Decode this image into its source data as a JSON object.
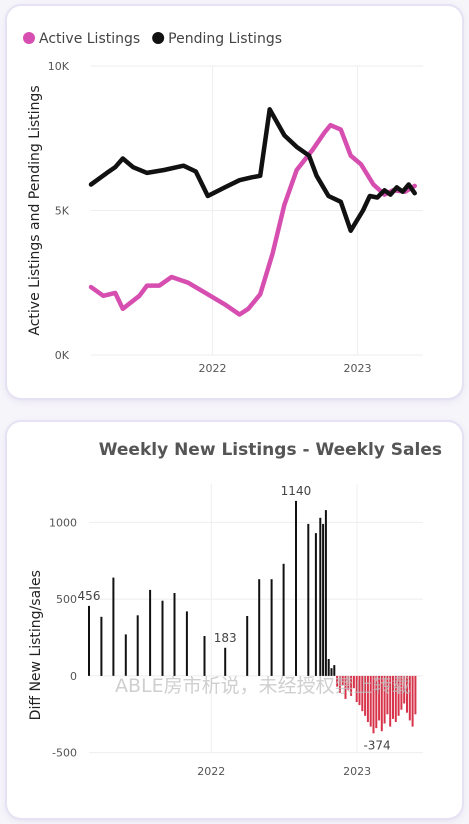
{
  "chart_data": [
    {
      "type": "line",
      "title": "",
      "xlabel": "",
      "ylabel": "Active Listings and Pending Listings",
      "ylim": [
        0,
        10000
      ],
      "yticks": [
        {
          "value": 0,
          "label": "0K"
        },
        {
          "value": 5000,
          "label": "5K"
        },
        {
          "value": 10000,
          "label": "10K"
        }
      ],
      "xlim": [
        "2021-03-01",
        "2023-06-15"
      ],
      "xticks": [
        {
          "value": "2022-01-01",
          "label": "2022"
        },
        {
          "value": "2023-01-01",
          "label": "2023"
        }
      ],
      "grid": true,
      "legend_position": "top-left",
      "series": [
        {
          "name": "Active Listings",
          "color": "#d64fb0",
          "points": [
            [
              "2021-03-01",
              2350
            ],
            [
              "2021-04-01",
              2050
            ],
            [
              "2021-05-01",
              2150
            ],
            [
              "2021-05-20",
              1600
            ],
            [
              "2021-07-01",
              2050
            ],
            [
              "2021-07-20",
              2400
            ],
            [
              "2021-08-20",
              2400
            ],
            [
              "2021-09-20",
              2700
            ],
            [
              "2021-11-01",
              2500
            ],
            [
              "2021-12-20",
              2100
            ],
            [
              "2022-02-01",
              1750
            ],
            [
              "2022-03-10",
              1400
            ],
            [
              "2022-04-01",
              1600
            ],
            [
              "2022-05-01",
              2100
            ],
            [
              "2022-06-01",
              3500
            ],
            [
              "2022-07-01",
              5200
            ],
            [
              "2022-08-01",
              6400
            ],
            [
              "2022-09-10",
              7100
            ],
            [
              "2022-10-10",
              7700
            ],
            [
              "2022-10-25",
              7950
            ],
            [
              "2022-11-20",
              7800
            ],
            [
              "2022-12-15",
              6900
            ],
            [
              "2023-01-10",
              6600
            ],
            [
              "2023-02-10",
              5900
            ],
            [
              "2023-03-10",
              5550
            ],
            [
              "2023-04-01",
              5700
            ],
            [
              "2023-05-01",
              5650
            ],
            [
              "2023-05-25",
              5850
            ]
          ]
        },
        {
          "name": "Pending Listings",
          "color": "#111111",
          "points": [
            [
              "2021-03-01",
              5900
            ],
            [
              "2021-04-10",
              6300
            ],
            [
              "2021-05-01",
              6500
            ],
            [
              "2021-05-20",
              6800
            ],
            [
              "2021-06-15",
              6500
            ],
            [
              "2021-07-20",
              6300
            ],
            [
              "2021-09-01",
              6400
            ],
            [
              "2021-10-20",
              6550
            ],
            [
              "2021-11-20",
              6350
            ],
            [
              "2021-12-20",
              5500
            ],
            [
              "2022-02-01",
              5800
            ],
            [
              "2022-03-10",
              6050
            ],
            [
              "2022-04-10",
              6150
            ],
            [
              "2022-05-01",
              6200
            ],
            [
              "2022-05-25",
              8500
            ],
            [
              "2022-07-01",
              7600
            ],
            [
              "2022-08-01",
              7200
            ],
            [
              "2022-09-01",
              6900
            ],
            [
              "2022-09-20",
              6200
            ],
            [
              "2022-10-20",
              5500
            ],
            [
              "2022-11-20",
              5300
            ],
            [
              "2022-12-15",
              4300
            ],
            [
              "2023-01-15",
              5000
            ],
            [
              "2023-02-01",
              5500
            ],
            [
              "2023-02-20",
              5450
            ],
            [
              "2023-03-10",
              5700
            ],
            [
              "2023-03-25",
              5550
            ],
            [
              "2023-04-10",
              5800
            ],
            [
              "2023-04-25",
              5650
            ],
            [
              "2023-05-10",
              5900
            ],
            [
              "2023-05-25",
              5600
            ]
          ]
        }
      ]
    },
    {
      "type": "bar",
      "title": "Weekly New Listings - Weekly Sales",
      "xlabel": "",
      "ylabel": "Diff New Listing/sales",
      "ylim": [
        -600,
        1250
      ],
      "yticks": [
        {
          "value": -500,
          "label": "-500"
        },
        {
          "value": 0,
          "label": "0"
        },
        {
          "value": 500,
          "label": "500"
        },
        {
          "value": 1000,
          "label": "1000"
        }
      ],
      "xlim": [
        "2021-03-01",
        "2023-06-15"
      ],
      "xticks": [
        {
          "value": "2022-01-01",
          "label": "2022"
        },
        {
          "value": "2023-01-01",
          "label": "2023"
        }
      ],
      "grid": true,
      "positive_color": "#111111",
      "negative_color": "#d7344b",
      "data_labels": [
        {
          "date": "2021-03-01",
          "value": 456,
          "label": "456"
        },
        {
          "date": "2022-02-05",
          "value": 183,
          "label": "183"
        },
        {
          "date": "2022-08-01",
          "value": 1140,
          "label": "1140"
        },
        {
          "date": "2023-02-20",
          "value": -374,
          "label": "-374"
        }
      ],
      "bars": [
        [
          "2021-03-01",
          456
        ],
        [
          "2021-04-01",
          385
        ],
        [
          "2021-05-01",
          640
        ],
        [
          "2021-06-01",
          270
        ],
        [
          "2021-07-01",
          395
        ],
        [
          "2021-08-01",
          560
        ],
        [
          "2021-09-01",
          490
        ],
        [
          "2021-10-01",
          540
        ],
        [
          "2021-11-01",
          420
        ],
        [
          "2021-12-15",
          260
        ],
        [
          "2022-02-05",
          183
        ],
        [
          "2022-04-01",
          390
        ],
        [
          "2022-05-01",
          630
        ],
        [
          "2022-06-01",
          630
        ],
        [
          "2022-07-01",
          730
        ],
        [
          "2022-08-01",
          1140
        ],
        [
          "2022-09-01",
          990
        ],
        [
          "2022-09-20",
          930
        ],
        [
          "2022-10-01",
          1030
        ],
        [
          "2022-10-08",
          990
        ],
        [
          "2022-10-15",
          1080
        ],
        [
          "2022-10-22",
          110
        ],
        [
          "2022-10-29",
          50
        ],
        [
          "2022-11-05",
          70
        ],
        [
          "2022-11-12",
          -70
        ],
        [
          "2022-11-19",
          -110
        ],
        [
          "2022-11-26",
          -60
        ],
        [
          "2022-12-03",
          -150
        ],
        [
          "2022-12-10",
          -90
        ],
        [
          "2022-12-17",
          -130
        ],
        [
          "2022-12-24",
          -80
        ],
        [
          "2022-12-31",
          -170
        ],
        [
          "2023-01-07",
          -190
        ],
        [
          "2023-01-14",
          -230
        ],
        [
          "2023-01-21",
          -260
        ],
        [
          "2023-01-28",
          -300
        ],
        [
          "2023-02-04",
          -330
        ],
        [
          "2023-02-11",
          -374
        ],
        [
          "2023-02-18",
          -340
        ],
        [
          "2023-02-25",
          -290
        ],
        [
          "2023-03-04",
          -360
        ],
        [
          "2023-03-11",
          -310
        ],
        [
          "2023-03-18",
          -250
        ],
        [
          "2023-03-25",
          -330
        ],
        [
          "2023-04-01",
          -280
        ],
        [
          "2023-04-08",
          -300
        ],
        [
          "2023-04-15",
          -260
        ],
        [
          "2023-04-22",
          -220
        ],
        [
          "2023-04-29",
          -180
        ],
        [
          "2023-05-06",
          -240
        ],
        [
          "2023-05-13",
          -290
        ],
        [
          "2023-05-20",
          -330
        ],
        [
          "2023-05-27",
          -250
        ]
      ]
    }
  ],
  "watermark": "ABLE房市析说，未经授权禁止转载"
}
